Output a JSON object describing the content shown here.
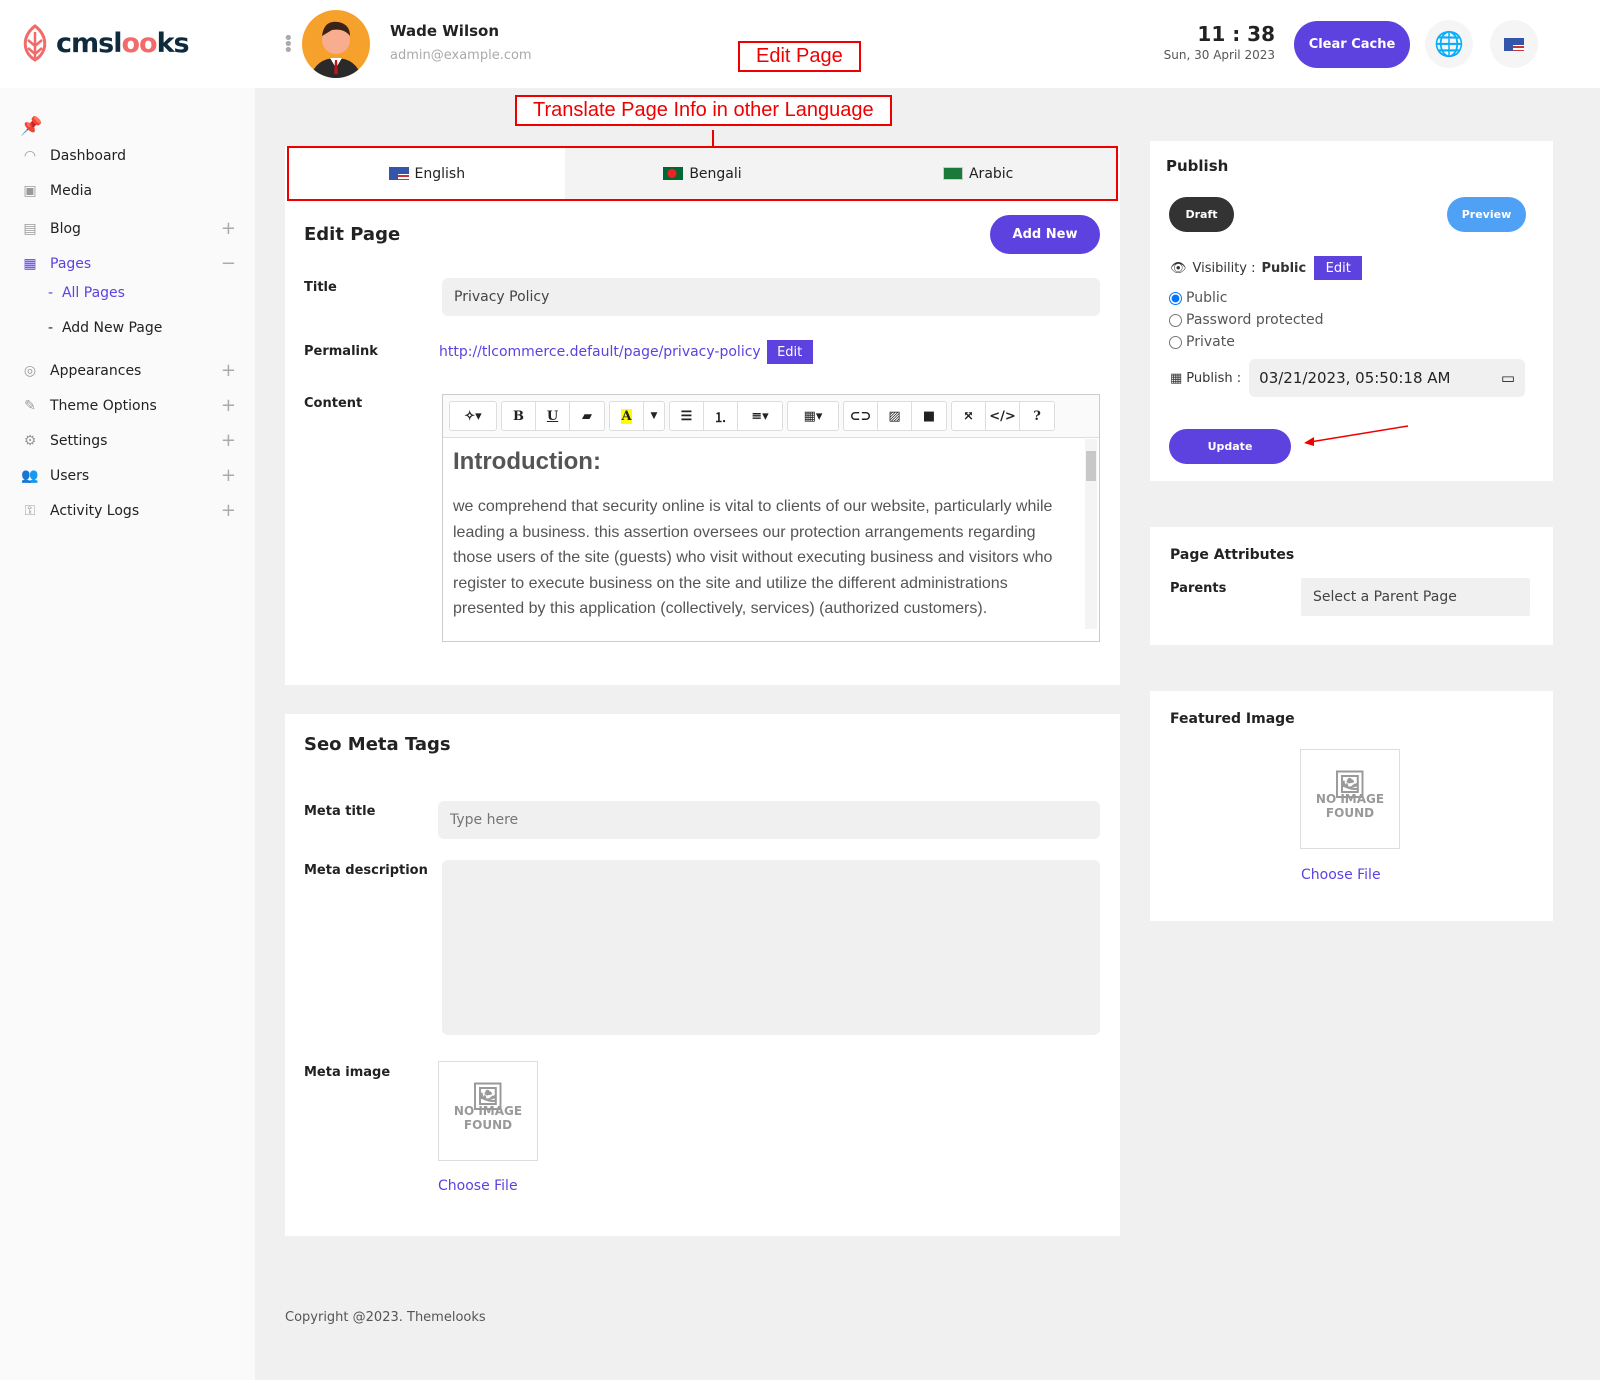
{
  "brand": {
    "name_a": "cmsl",
    "name_b": "oo",
    "name_c": "ks"
  },
  "user": {
    "name": "Wade Wilson",
    "email": "admin@example.com"
  },
  "annotations": {
    "edit_page": "Edit Page",
    "translate": "Translate Page Info in other Language"
  },
  "clock": {
    "time": "11 : 38",
    "date": "Sun, 30 April 2023"
  },
  "header": {
    "clear_cache": "Clear Cache"
  },
  "sidebar": {
    "items": [
      {
        "label": "Dashboard",
        "icon": "dashboard-icon"
      },
      {
        "label": "Media",
        "icon": "media-icon"
      },
      {
        "label": "Blog",
        "icon": "blog-icon"
      },
      {
        "label": "Pages",
        "icon": "pages-icon"
      },
      {
        "label": "Appearances",
        "icon": "appearance-icon"
      },
      {
        "label": "Theme Options",
        "icon": "brush-icon"
      },
      {
        "label": "Settings",
        "icon": "gear-icon"
      },
      {
        "label": "Users",
        "icon": "users-icon"
      },
      {
        "label": "Activity Logs",
        "icon": "key-icon"
      }
    ],
    "sub": [
      "All Pages",
      "Add New Page"
    ]
  },
  "tabs": [
    "English",
    "Bengali",
    "Arabic"
  ],
  "edit": {
    "heading": "Edit Page",
    "add_new": "Add New",
    "title_label": "Title",
    "title_value": "Privacy Policy",
    "permalink_label": "Permalink",
    "permalink": "http://tlcommerce.default/page/privacy-policy",
    "edit": "Edit",
    "content_label": "Content",
    "content_heading": "Introduction:",
    "content_body": "we comprehend that security online is vital to clients of our website, particularly while leading a business. this assertion oversees our protection arrangements regarding those users of the site (guests) who visit without executing business and visitors who register to execute business on the site and utilize the different administrations presented by this application (collectively, services) (authorized customers)."
  },
  "seo": {
    "heading": "Seo Meta Tags",
    "meta_title": "Meta title",
    "meta_title_placeholder": "Type here",
    "meta_desc": "Meta description",
    "meta_image": "Meta image",
    "no_image": "NO IMAGE FOUND",
    "choose": "Choose File"
  },
  "publish": {
    "heading": "Publish",
    "draft": "Draft",
    "preview": "Preview",
    "visibility": "Visibility :",
    "visibility_value": "Public",
    "edit": "Edit",
    "options": [
      "Public",
      "Password protected",
      "Private"
    ],
    "selected": "Public",
    "publish_label": "Publish :",
    "publish_value": "03/21/2023, 05:50:18 AM",
    "update": "Update"
  },
  "attributes": {
    "heading": "Page Attributes",
    "parents": "Parents",
    "parent_value": "Select a Parent Page"
  },
  "featured": {
    "heading": "Featured Image",
    "no_image": "NO IMAGE FOUND",
    "choose": "Choose File"
  },
  "footer": "Copyright @2023. Themelooks"
}
